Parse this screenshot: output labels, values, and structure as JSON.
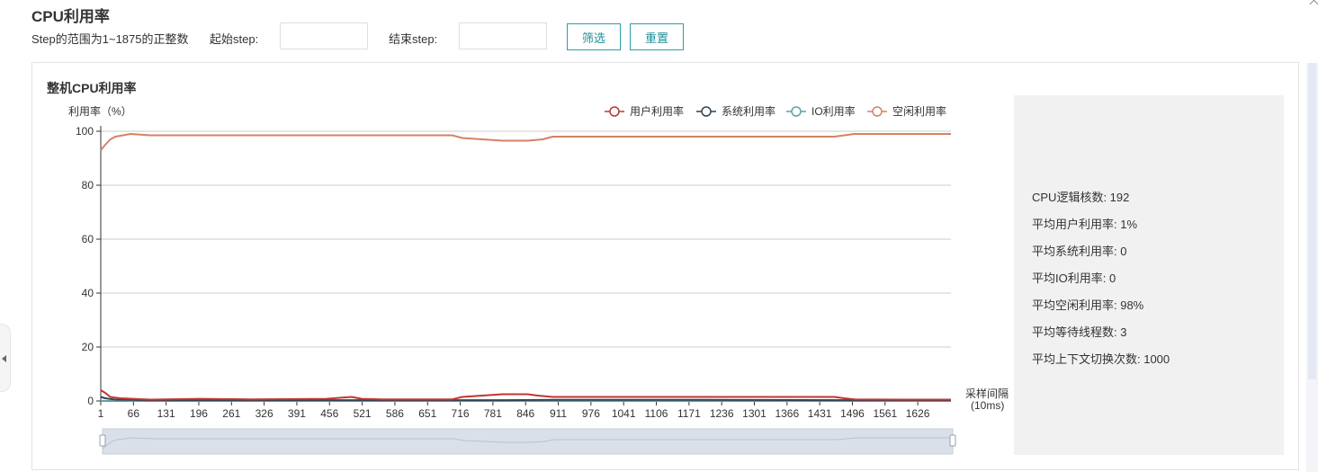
{
  "page": {
    "title": "CPU利用率"
  },
  "filter": {
    "range_hint": "Step的范围为1~1875的正整数",
    "start_label": "起始step:",
    "start_value": "",
    "end_label": "结束step:",
    "end_value": "",
    "filter_button": "筛选",
    "reset_button": "重置"
  },
  "panel": {
    "title": "整机CPU利用率"
  },
  "stats": {
    "cores": "CPU逻辑核数: 192",
    "avg_user": "平均用户利用率: 1%",
    "avg_sys": "平均系统利用率: 0",
    "avg_io": "平均IO利用率: 0",
    "avg_idle": "平均空闲利用率: 98%",
    "avg_wait_threads": "平均等待线程数: 3",
    "avg_ctx_switch": "平均上下文切换次数: 1000"
  },
  "chart_data": {
    "type": "line",
    "ylabel": "利用率（%）",
    "xlabel_line1": "采样间隔",
    "xlabel_line2": "(10ms)",
    "ylim": [
      0,
      100
    ],
    "xlim": [
      1,
      1692
    ],
    "y_ticks": [
      "0",
      "20",
      "40",
      "60",
      "80",
      "100"
    ],
    "x_ticks": [
      "1",
      "66",
      "131",
      "196",
      "261",
      "326",
      "391",
      "456",
      "521",
      "586",
      "651",
      "716",
      "781",
      "846",
      "911",
      "976",
      "1041",
      "1106",
      "1171",
      "1236",
      "1301",
      "1366",
      "1431",
      "1496",
      "1561",
      "1626"
    ],
    "grid": true,
    "legend_position": "top-right",
    "legend": [
      "用户利用率",
      "系统利用率",
      "IO利用率",
      "空闲利用率"
    ],
    "colors": {
      "user": "#c23531",
      "system": "#2f4554",
      "io": "#61a0a8",
      "idle": "#d48265",
      "grid": "#cccccc",
      "axis": "#333333",
      "zoom_fill": "#d9e0ea"
    },
    "series": [
      {
        "name": "用户利用率",
        "key": "user",
        "x": [
          1,
          10,
          20,
          40,
          100,
          200,
          300,
          450,
          500,
          520,
          560,
          700,
          720,
          760,
          800,
          850,
          870,
          900,
          1000,
          1100,
          1200,
          1300,
          1400,
          1460,
          1480,
          1500,
          1600,
          1692
        ],
        "y": [
          4,
          3,
          1.5,
          1,
          0.5,
          0.8,
          0.6,
          0.8,
          1.5,
          0.8,
          0.6,
          0.6,
          1.5,
          2,
          2.5,
          2.5,
          2,
          1.5,
          1.5,
          1.5,
          1.5,
          1.5,
          1.5,
          1.5,
          1,
          0.6,
          0.5,
          0.5
        ]
      },
      {
        "name": "系统利用率",
        "key": "system",
        "x": [
          1,
          10,
          30,
          100,
          400,
          800,
          900,
          1200,
          1500,
          1692
        ],
        "y": [
          1.5,
          1,
          0.5,
          0.3,
          0.3,
          0.3,
          0.4,
          0.4,
          0.3,
          0.3
        ]
      },
      {
        "name": "IO利用率",
        "key": "io",
        "x": [
          1,
          1692
        ],
        "y": [
          0,
          0
        ]
      },
      {
        "name": "空闲利用率",
        "key": "idle",
        "x": [
          1,
          10,
          20,
          30,
          60,
          100,
          200,
          300,
          400,
          500,
          600,
          700,
          720,
          760,
          800,
          850,
          880,
          900,
          1000,
          1100,
          1200,
          1300,
          1400,
          1460,
          1480,
          1500,
          1600,
          1692
        ],
        "y": [
          93,
          95,
          97,
          98,
          99,
          98.5,
          98.5,
          98.5,
          98.5,
          98.5,
          98.5,
          98.5,
          97.5,
          97,
          96.5,
          96.5,
          97,
          98,
          98,
          98,
          98,
          98,
          98,
          98,
          98.5,
          99,
          99,
          99
        ]
      }
    ]
  }
}
